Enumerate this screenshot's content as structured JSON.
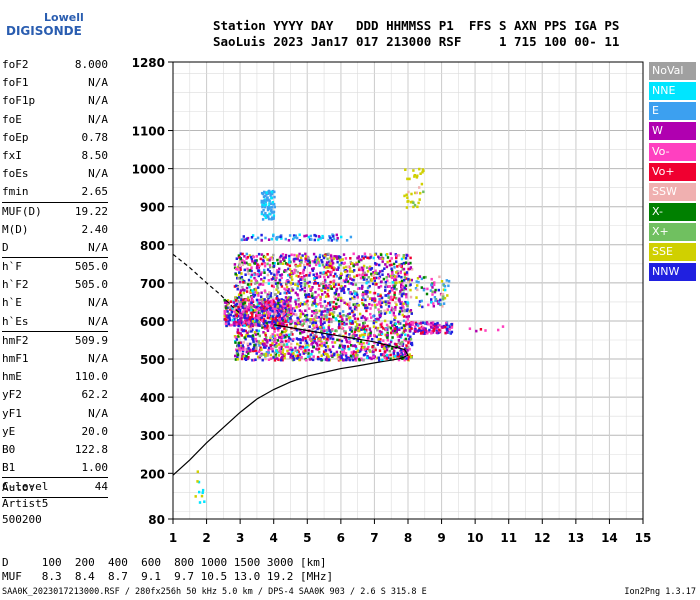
{
  "logo": {
    "line1": "Lowell",
    "line2": "DIGISONDE"
  },
  "header": {
    "line1": "Station YYYY DAY   DDD HHMMSS P1  FFS S AXN PPS IGA PS",
    "line2": "SaoLuis 2023 Jan17 017 213000 RSF     1 715 100 00- 11"
  },
  "params": [
    {
      "k": "foF2",
      "v": "8.000"
    },
    {
      "k": "foF1",
      "v": "N/A"
    },
    {
      "k": "foF1p",
      "v": "N/A"
    },
    {
      "k": "foE",
      "v": "N/A"
    },
    {
      "k": "foEp",
      "v": "0.78"
    },
    {
      "k": "fxI",
      "v": "8.50"
    },
    {
      "k": "foEs",
      "v": "N/A"
    },
    {
      "k": "fmin",
      "v": "2.65"
    },
    {
      "sep": true
    },
    {
      "k": "MUF(D)",
      "v": "19.22"
    },
    {
      "k": "M(D)",
      "v": "2.40"
    },
    {
      "k": "D",
      "v": "N/A"
    },
    {
      "sep": true
    },
    {
      "k": "h`F",
      "v": "505.0"
    },
    {
      "k": "h`F2",
      "v": "505.0"
    },
    {
      "k": "h`E",
      "v": "N/A"
    },
    {
      "k": "h`Es",
      "v": "N/A"
    },
    {
      "sep": true
    },
    {
      "k": "hmF2",
      "v": "509.9"
    },
    {
      "k": "hmF1",
      "v": "N/A"
    },
    {
      "k": "hmE",
      "v": "110.0"
    },
    {
      "k": "yF2",
      "v": "62.2"
    },
    {
      "k": "yF1",
      "v": "N/A"
    },
    {
      "k": "yE",
      "v": "20.0"
    },
    {
      "k": "B0",
      "v": "122.8"
    },
    {
      "k": "B1",
      "v": "1.00"
    },
    {
      "sep": true
    },
    {
      "k": "C-level",
      "v": "44"
    },
    {
      "sep": true
    }
  ],
  "auto": {
    "title": "Auto:",
    "lines": [
      "Artist5",
      "500200"
    ]
  },
  "legend": [
    {
      "label": "NoVal",
      "color": "#a0a0a0"
    },
    {
      "label": "NNE",
      "color": "#00e5ff"
    },
    {
      "label": "E",
      "color": "#3ca0f0"
    },
    {
      "label": "W",
      "color": "#b000b0"
    },
    {
      "label": "Vo-",
      "color": "#ff40c0"
    },
    {
      "label": "Vo+",
      "color": "#f00030"
    },
    {
      "label": "SSW",
      "color": "#f0b0b0"
    },
    {
      "label": "X-",
      "color": "#008000"
    },
    {
      "label": "X+",
      "color": "#70c060"
    },
    {
      "label": "SSE",
      "color": "#d0d000"
    },
    {
      "label": "NNW",
      "color": "#2020e0"
    }
  ],
  "dmuf": {
    "line1": "D     100  200  400  600  800 1000 1500 3000 [km]",
    "line2": "MUF   8.3  8.4  8.7  9.1  9.7 10.5 13.0 19.2 [MHz]"
  },
  "footer": "SAA0K_2023017213000.RSF / 280fx256h 50 kHz 5.0 km / DPS-4 SAA0K 903 / 2.6 S 315.8 E",
  "version": "Ion2Png 1.3.17",
  "chart_data": {
    "type": "scatter",
    "xlim": [
      1,
      15
    ],
    "ylim": [
      80,
      1280
    ],
    "x_ticks": [
      1,
      2,
      3,
      4,
      5,
      6,
      7,
      8,
      9,
      10,
      11,
      12,
      13,
      14,
      15
    ],
    "y_ticks": [
      80,
      200,
      300,
      400,
      500,
      600,
      700,
      800,
      900,
      1000,
      1100,
      1280
    ],
    "grid": true,
    "profile_curve": [
      [
        1.0,
        195
      ],
      [
        1.5,
        235
      ],
      [
        2.0,
        280
      ],
      [
        2.5,
        320
      ],
      [
        3.0,
        360
      ],
      [
        3.5,
        395
      ],
      [
        4.0,
        420
      ],
      [
        4.5,
        440
      ],
      [
        5.0,
        455
      ],
      [
        5.5,
        465
      ],
      [
        6.0,
        475
      ],
      [
        6.5,
        482
      ],
      [
        7.0,
        490
      ],
      [
        7.5,
        497
      ],
      [
        7.8,
        502
      ],
      [
        8.0,
        510
      ],
      [
        7.9,
        525
      ],
      [
        7.0,
        545
      ],
      [
        6.0,
        560
      ],
      [
        5.0,
        575
      ],
      [
        4.0,
        590
      ]
    ],
    "dashed_curve": [
      [
        1.0,
        775
      ],
      [
        1.5,
        740
      ],
      [
        2.0,
        700
      ],
      [
        2.4,
        670
      ],
      [
        2.8,
        635
      ],
      [
        3.0,
        620
      ]
    ],
    "clusters": [
      {
        "xmin": 2.8,
        "xmax": 8.1,
        "ymin": 500,
        "ymax": 780,
        "n": 2400,
        "weights": [
          3,
          2,
          1,
          10,
          8,
          6,
          2,
          4,
          3,
          7,
          12
        ]
      },
      {
        "xmin": 2.5,
        "xmax": 4.5,
        "ymin": 590,
        "ymax": 660,
        "n": 500,
        "weights": [
          1,
          1,
          0,
          6,
          10,
          6,
          1,
          2,
          1,
          3,
          12
        ]
      },
      {
        "xmin": 3.6,
        "xmax": 4.0,
        "ymin": 870,
        "ymax": 945,
        "n": 90,
        "weights": [
          0,
          2,
          10,
          0,
          0,
          0,
          0,
          0,
          0,
          0,
          0
        ]
      },
      {
        "xmin": 3.0,
        "xmax": 6.3,
        "ymin": 815,
        "ymax": 830,
        "n": 70,
        "weights": [
          0,
          2,
          6,
          2,
          0,
          0,
          0,
          0,
          0,
          0,
          3
        ]
      },
      {
        "xmin": 8.0,
        "xmax": 9.3,
        "ymin": 570,
        "ymax": 600,
        "n": 140,
        "weights": [
          0,
          0,
          1,
          4,
          6,
          4,
          1,
          0,
          0,
          0,
          6
        ]
      },
      {
        "xmin": 8.2,
        "xmax": 9.2,
        "ymin": 640,
        "ymax": 720,
        "n": 70,
        "weights": [
          0,
          1,
          4,
          2,
          1,
          0,
          1,
          2,
          1,
          2,
          2
        ]
      },
      {
        "xmin": 7.8,
        "xmax": 8.45,
        "ymin": 900,
        "ymax": 1020,
        "n": 35,
        "weights": [
          0,
          0,
          0,
          0,
          0,
          0,
          2,
          0,
          1,
          10,
          0
        ]
      },
      {
        "xmin": 1.6,
        "xmax": 1.9,
        "ymin": 120,
        "ymax": 210,
        "n": 10,
        "weights": [
          0,
          3,
          0,
          0,
          0,
          0,
          0,
          0,
          0,
          4,
          0
        ]
      },
      {
        "xmin": 9.6,
        "xmax": 11.0,
        "ymin": 575,
        "ymax": 590,
        "n": 6,
        "weights": [
          0,
          0,
          0,
          2,
          2,
          2,
          0,
          0,
          0,
          0,
          0
        ]
      }
    ]
  }
}
